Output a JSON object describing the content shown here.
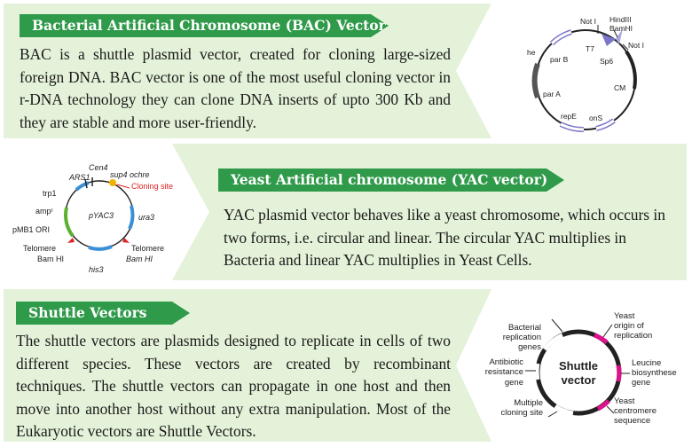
{
  "bac": {
    "title": "Bacterial Artificial Chromosome (BAC) Vector",
    "text": "BAC is a shuttle plasmid vector, created for cloning large-sized foreign DNA. BAC vector is one of the most useful cloning vector in r-DNA technology they can clone DNA inserts of upto 300 Kb and they are stable and more user-friendly.",
    "diagram": {
      "not1": "Not I",
      "hindiii": "HindIII",
      "bamhi": "BamHI",
      "not2": "Not I",
      "he": "he",
      "t7": "T7",
      "sp6": "Sp6",
      "parb": "par B",
      "cm": "CM",
      "para": "par A",
      "repe": "repE",
      "ons": "onS"
    }
  },
  "yac": {
    "title": "Yeast Artificial chromosome (YAC vector)",
    "text": "YAC plasmid vector behaves like a yeast chromosome, which occurs in two forms, i.e. circular and linear. The circular YAC multiplies in Bacteria and linear YAC multiplies in Yeast Cells.",
    "diagram": {
      "cen4": "Cen4",
      "ars1": "ARS1",
      "sup4": "sup4 ochre",
      "cloning_site": "Cloning site",
      "trp1": "trp1",
      "amp": "ampʳ",
      "pyac3": "pYAC3",
      "ura3": "ura3",
      "pmb1": "pMB1 ORI",
      "telomere_left": "Telomere",
      "telomere_right": "Telomere",
      "bamhi_left": "Bam HI",
      "bamhi_right": "Bam HI",
      "his3": "his3"
    }
  },
  "shuttle": {
    "title": "Shuttle Vectors",
    "text": "The shuttle vectors are plasmids designed to replicate in cells of two different species. These vectors are created by recombinant techniques. The shuttle vectors can propagate in one host and then move into another host without any extra manipulation. Most of the Eukaryotic vectors are Shuttle Vectors.",
    "diagram": {
      "center1": "Shuttle",
      "center2": "vector",
      "bact1": "Bacterial",
      "bact2": "replication",
      "bact3": "genes",
      "anti1": "Antibiotic",
      "anti2": "resistance",
      "anti3": "gene",
      "multi1": "Multiple",
      "multi2": "cloning site",
      "yo1": "Yeast",
      "yo2": "origin of",
      "yo3": "replication",
      "leu1": "Leucine",
      "leu2": "biosynthese",
      "leu3": "gene",
      "yc1": "Yeast",
      "yc2": "centromere",
      "yc3": "sequence"
    }
  },
  "colors": {
    "title_green": "#2f9a49",
    "panel_green": "#e4f2d9",
    "magenta": "#e0118c",
    "purple": "#7b76c9"
  }
}
